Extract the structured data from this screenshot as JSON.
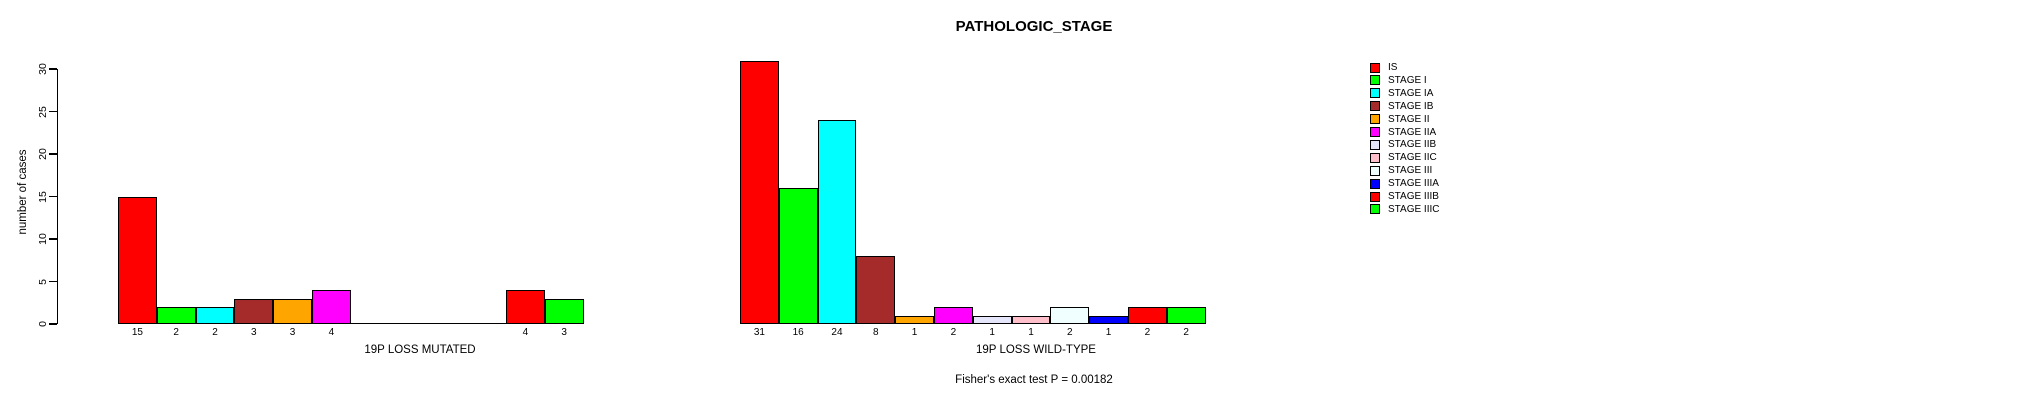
{
  "chart_data": {
    "type": "bar",
    "title": "PATHOLOGIC_STAGE",
    "ylabel": "number of cases",
    "ylim": [
      0,
      30
    ],
    "yticks": [
      0,
      5,
      10,
      15,
      20,
      25,
      30
    ],
    "grid": false,
    "legend_position": "right",
    "categories": [
      "IS",
      "STAGE I",
      "STAGE IA",
      "STAGE IB",
      "STAGE II",
      "STAGE IIA",
      "STAGE IIB",
      "STAGE IIC",
      "STAGE III",
      "STAGE IIIA",
      "STAGE IIIB",
      "STAGE IIIC"
    ],
    "colors": [
      "#FF0000",
      "#00FF00",
      "#00FFFF",
      "#A52A2A",
      "#FFA500",
      "#FF00FF",
      "#E6E6FA",
      "#FFC0CB",
      "#F0FFFF",
      "#0000FF",
      "#FF0000",
      "#00FF00"
    ],
    "groups": [
      {
        "label": "19P LOSS MUTATED",
        "values": [
          15,
          2,
          2,
          3,
          3,
          4,
          0,
          0,
          0,
          0,
          4,
          3
        ]
      },
      {
        "label": "19P LOSS WILD-TYPE",
        "values": [
          31,
          16,
          24,
          8,
          1,
          2,
          1,
          1,
          2,
          1,
          2,
          2
        ]
      }
    ],
    "bar_label_rule": "counts shown under each non-zero bar",
    "footnote": "Fisher's exact test P = 0.00182"
  }
}
